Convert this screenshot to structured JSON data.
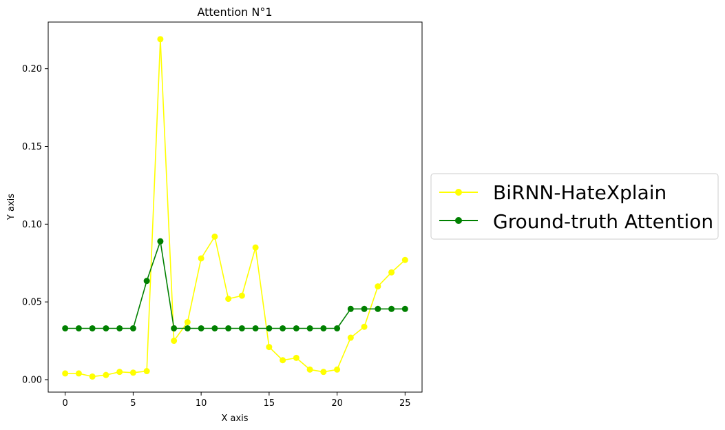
{
  "chart_data": {
    "type": "line",
    "title": "Attention N°1",
    "xlabel": "X axis",
    "ylabel": "Y axis",
    "xlim": [
      -1.25,
      26.25
    ],
    "ylim": [
      -0.008,
      0.23
    ],
    "xticks": [
      0,
      5,
      10,
      15,
      20,
      25
    ],
    "xtick_labels": [
      "0",
      "5",
      "10",
      "15",
      "20",
      "25"
    ],
    "yticks": [
      0.0,
      0.05,
      0.1,
      0.15,
      0.2
    ],
    "ytick_labels": [
      "0.00",
      "0.05",
      "0.10",
      "0.15",
      "0.20"
    ],
    "grid": false,
    "legend_position": "outside-right",
    "x": [
      0,
      1,
      2,
      3,
      4,
      5,
      6,
      7,
      8,
      9,
      10,
      11,
      12,
      13,
      14,
      15,
      16,
      17,
      18,
      19,
      20,
      21,
      22,
      23,
      24,
      25
    ],
    "series": [
      {
        "name": "BiRNN-HateXplain",
        "color": "#ffff00",
        "values": [
          0.004,
          0.004,
          0.002,
          0.003,
          0.005,
          0.0045,
          0.0055,
          0.219,
          0.025,
          0.037,
          0.078,
          0.092,
          0.052,
          0.054,
          0.085,
          0.021,
          0.0125,
          0.014,
          0.0065,
          0.005,
          0.0065,
          0.027,
          0.034,
          0.06,
          0.069,
          0.077
        ]
      },
      {
        "name": "Ground-truth Attention",
        "color": "#008000",
        "values": [
          0.033,
          0.033,
          0.033,
          0.033,
          0.033,
          0.033,
          0.0635,
          0.089,
          0.033,
          0.033,
          0.033,
          0.033,
          0.033,
          0.033,
          0.033,
          0.033,
          0.033,
          0.033,
          0.033,
          0.033,
          0.033,
          0.0455,
          0.0455,
          0.0455,
          0.0455,
          0.0455
        ]
      }
    ]
  }
}
